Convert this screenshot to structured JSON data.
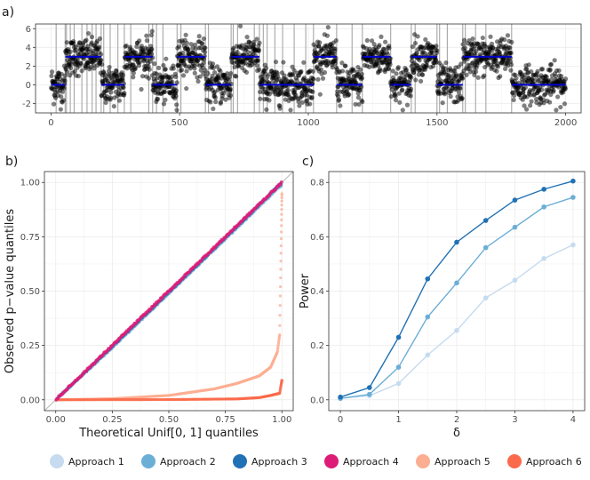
{
  "colors": {
    "approach_1": "#c6dbef",
    "approach_2": "#6baed6",
    "approach_3": "#2171b5",
    "approach_4": "#dd1c77",
    "approach_5": "#fcae91",
    "approach_6": "#fb6a4a",
    "segment_mean": "#0000cd",
    "changepoint_line": "#a6a6a6",
    "grid": "#ebebeb",
    "panel_border": "#333333"
  },
  "chart_data": [
    {
      "panel_label": "a)",
      "type": "scatter",
      "xlim": [
        -60,
        2060
      ],
      "ylim": [
        -3,
        6.5
      ],
      "x_ticks": [
        0,
        500,
        1000,
        1500,
        2000
      ],
      "y_ticks": [
        -2,
        0,
        2,
        4,
        6
      ],
      "xlabel": "",
      "ylabel": "",
      "n_points": 2000,
      "noise_sd": 1,
      "segments": [
        {
          "start": 1,
          "end": 55,
          "mean": 0
        },
        {
          "start": 56,
          "end": 195,
          "mean": 3
        },
        {
          "start": 196,
          "end": 285,
          "mean": 0
        },
        {
          "start": 286,
          "end": 395,
          "mean": 3
        },
        {
          "start": 396,
          "end": 490,
          "mean": 0
        },
        {
          "start": 491,
          "end": 600,
          "mean": 3
        },
        {
          "start": 601,
          "end": 700,
          "mean": 0
        },
        {
          "start": 701,
          "end": 810,
          "mean": 3
        },
        {
          "start": 811,
          "end": 1020,
          "mean": 0
        },
        {
          "start": 1021,
          "end": 1110,
          "mean": 3
        },
        {
          "start": 1111,
          "end": 1210,
          "mean": 0
        },
        {
          "start": 1211,
          "end": 1320,
          "mean": 3
        },
        {
          "start": 1321,
          "end": 1400,
          "mean": 0
        },
        {
          "start": 1401,
          "end": 1500,
          "mean": 3
        },
        {
          "start": 1501,
          "end": 1600,
          "mean": 0
        },
        {
          "start": 1601,
          "end": 1790,
          "mean": 3
        },
        {
          "start": 1791,
          "end": 2000,
          "mean": 0
        }
      ],
      "changepoints": [
        20,
        55,
        60,
        75,
        90,
        120,
        140,
        160,
        175,
        195,
        205,
        230,
        260,
        285,
        310,
        380,
        395,
        410,
        435,
        490,
        505,
        600,
        612,
        700,
        708,
        725,
        790,
        810,
        825,
        840,
        870,
        900,
        945,
        990,
        1020,
        1110,
        1170,
        1210,
        1320,
        1400,
        1415,
        1500,
        1510,
        1540,
        1600,
        1610,
        1650,
        1690,
        1790
      ]
    },
    {
      "panel_label": "b)",
      "type": "scatter",
      "title": "",
      "xlabel": "Theoretical Unif[0, 1] quantiles",
      "ylabel": "Observed p−value quantiles",
      "xlim": [
        -0.05,
        1.05
      ],
      "ylim": [
        -0.05,
        1.05
      ],
      "x_ticks": [
        "0.00",
        "0.25",
        "0.50",
        "0.75",
        "1.00"
      ],
      "y_ticks": [
        "0.00",
        "0.25",
        "0.50",
        "0.75",
        "1.00"
      ],
      "reference_line": "y = x",
      "series": [
        {
          "name": "Approach 1",
          "description": "close to uniform",
          "x": [
            0,
            0.25,
            0.5,
            0.75,
            1.0
          ],
          "y": [
            0,
            0.24,
            0.49,
            0.74,
            0.99
          ]
        },
        {
          "name": "Approach 2",
          "description": "close to uniform",
          "x": [
            0,
            0.25,
            0.5,
            0.75,
            1.0
          ],
          "y": [
            0,
            0.24,
            0.49,
            0.74,
            0.99
          ]
        },
        {
          "name": "Approach 3",
          "description": "close to uniform",
          "x": [
            0,
            0.25,
            0.5,
            0.75,
            1.0
          ],
          "y": [
            0,
            0.245,
            0.495,
            0.745,
            1.0
          ]
        },
        {
          "name": "Approach 4",
          "description": "uniform",
          "x": [
            0,
            0.25,
            0.5,
            0.75,
            1.0
          ],
          "y": [
            0,
            0.25,
            0.5,
            0.75,
            1.0
          ]
        },
        {
          "name": "Approach 5",
          "x": [
            0,
            0.25,
            0.5,
            0.7,
            0.8,
            0.9,
            0.95,
            0.98,
            0.99,
            1.0
          ],
          "y": [
            0,
            0.005,
            0.02,
            0.05,
            0.075,
            0.11,
            0.15,
            0.22,
            0.3,
            0.95
          ]
        },
        {
          "name": "Approach 6",
          "x": [
            0,
            0.5,
            0.8,
            0.9,
            0.95,
            0.99,
            1.0
          ],
          "y": [
            0,
            0.001,
            0.004,
            0.01,
            0.02,
            0.03,
            0.09
          ]
        }
      ]
    },
    {
      "panel_label": "c)",
      "type": "line",
      "xlabel": "δ",
      "ylabel": "Power",
      "xlim": [
        -0.2,
        4.2
      ],
      "ylim": [
        -0.04,
        0.84
      ],
      "x_ticks": [
        "0",
        "1",
        "2",
        "3",
        "4"
      ],
      "y_ticks": [
        "0.0",
        "0.2",
        "0.4",
        "0.6",
        "0.8"
      ],
      "x": [
        0,
        0.5,
        1,
        1.5,
        2,
        2.5,
        3,
        3.5,
        4
      ],
      "series": [
        {
          "name": "Approach 1",
          "values": [
            0.005,
            0.015,
            0.06,
            0.165,
            0.255,
            0.375,
            0.44,
            0.52,
            0.57
          ]
        },
        {
          "name": "Approach 2",
          "values": [
            0.005,
            0.02,
            0.12,
            0.305,
            0.43,
            0.56,
            0.635,
            0.71,
            0.745
          ]
        },
        {
          "name": "Approach 3",
          "values": [
            0.01,
            0.045,
            0.23,
            0.445,
            0.58,
            0.66,
            0.735,
            0.775,
            0.805
          ]
        }
      ]
    }
  ],
  "legend": {
    "items": [
      "Approach 1",
      "Approach 2",
      "Approach 3",
      "Approach 4",
      "Approach 5",
      "Approach 6"
    ]
  }
}
